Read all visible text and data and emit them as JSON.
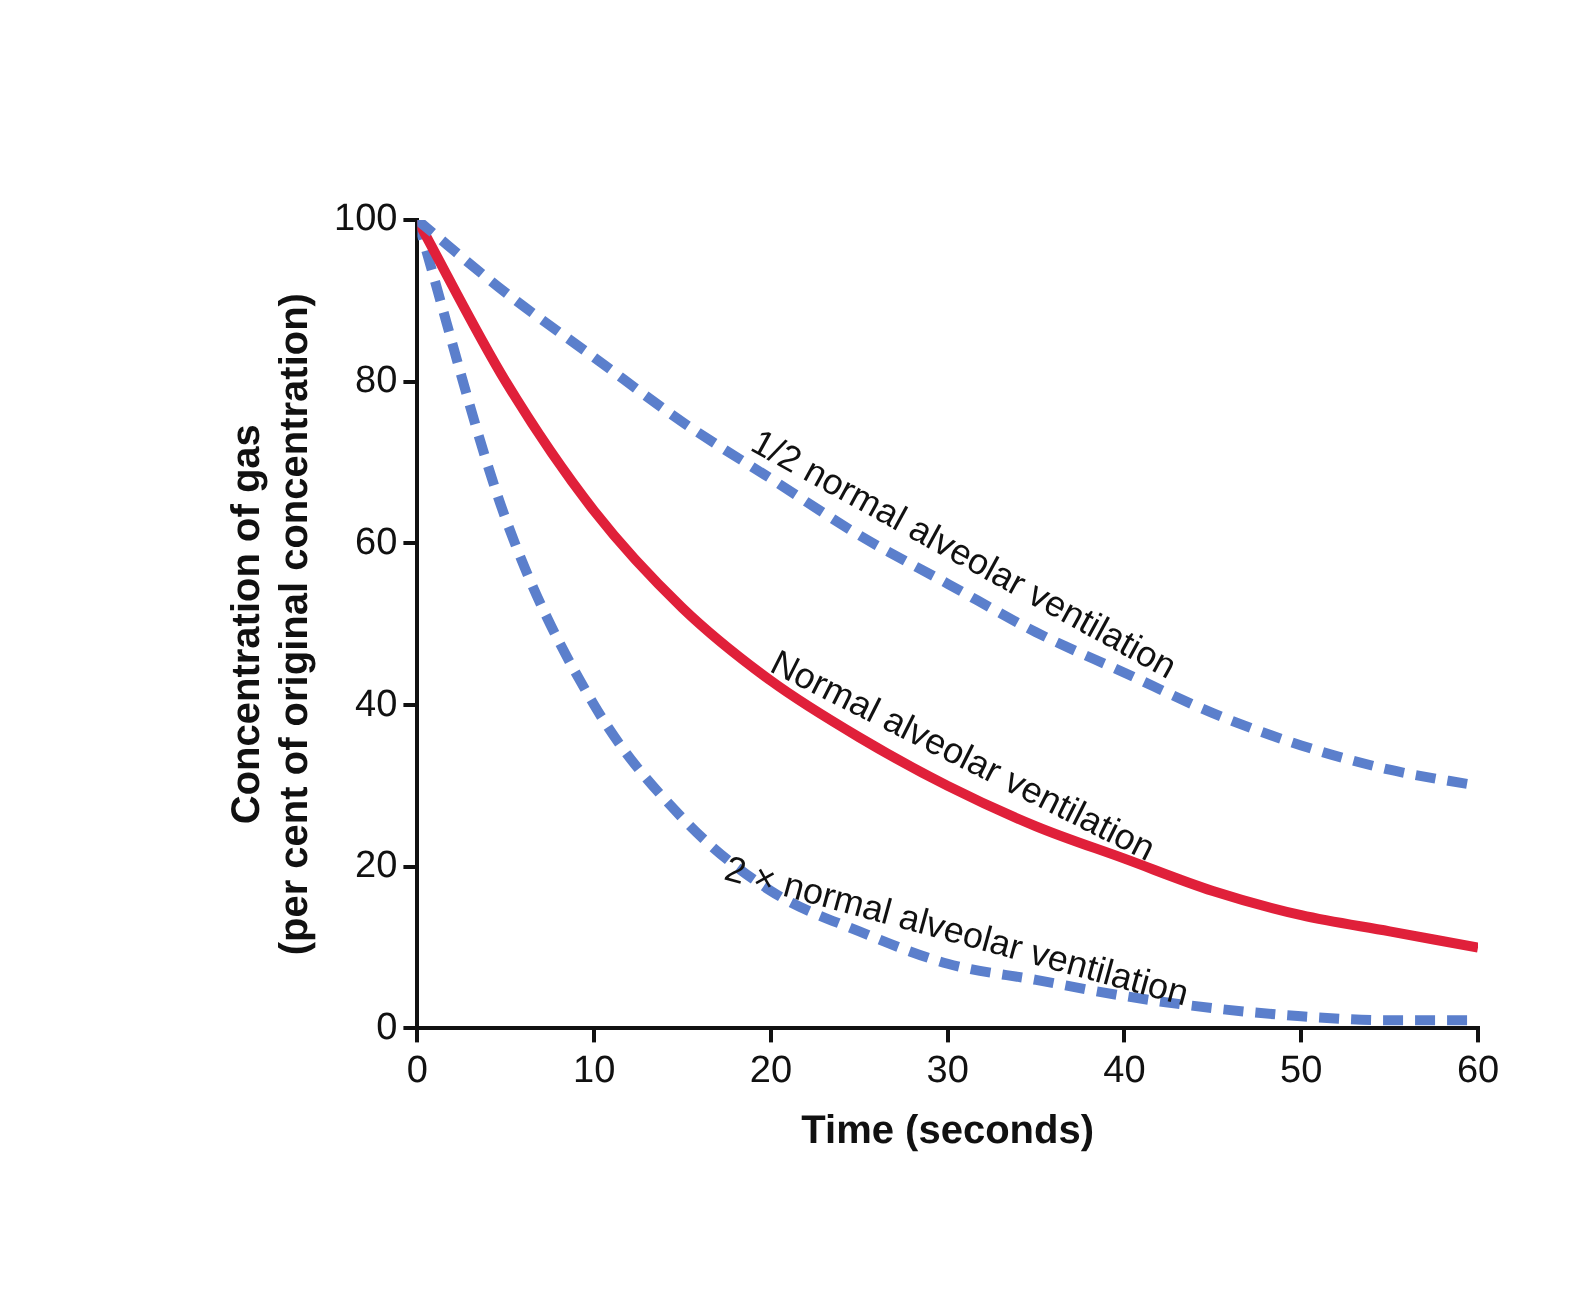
{
  "chart_data": {
    "type": "line",
    "xlabel": "Time (seconds)",
    "ylabel": "Concentration of gas\n(per cent of original concentration)",
    "xlim": [
      0,
      60
    ],
    "xticks": [
      0,
      10,
      20,
      30,
      40,
      50,
      60
    ],
    "ylim": [
      0,
      100
    ],
    "yticks": [
      0,
      20,
      40,
      60,
      80,
      100
    ],
    "grid": false,
    "legend": false,
    "marker": "none",
    "x": [
      0,
      5,
      10,
      15,
      20,
      25,
      30,
      35,
      40,
      45,
      50,
      55,
      60
    ],
    "series": [
      {
        "name": "1/2 normal alveolar ventilation",
        "color": "#5b7fcc",
        "line_style": "dashed",
        "values": [
          100,
          91,
          83,
          75,
          68,
          61,
          55,
          49,
          44,
          39,
          35,
          32,
          30
        ]
      },
      {
        "name": "Normal alveolar ventilation",
        "color": "#e0203a",
        "line_style": "solid",
        "values": [
          100,
          80,
          64,
          52,
          43,
          36,
          30,
          25,
          21,
          17,
          14,
          12,
          10
        ]
      },
      {
        "name": "2 × normal alveolar ventilation",
        "color": "#5b7fcc",
        "line_style": "dashed",
        "values": [
          100,
          63,
          40,
          26,
          17,
          12,
          8,
          6,
          4,
          2.5,
          1.5,
          1,
          1
        ]
      }
    ]
  }
}
